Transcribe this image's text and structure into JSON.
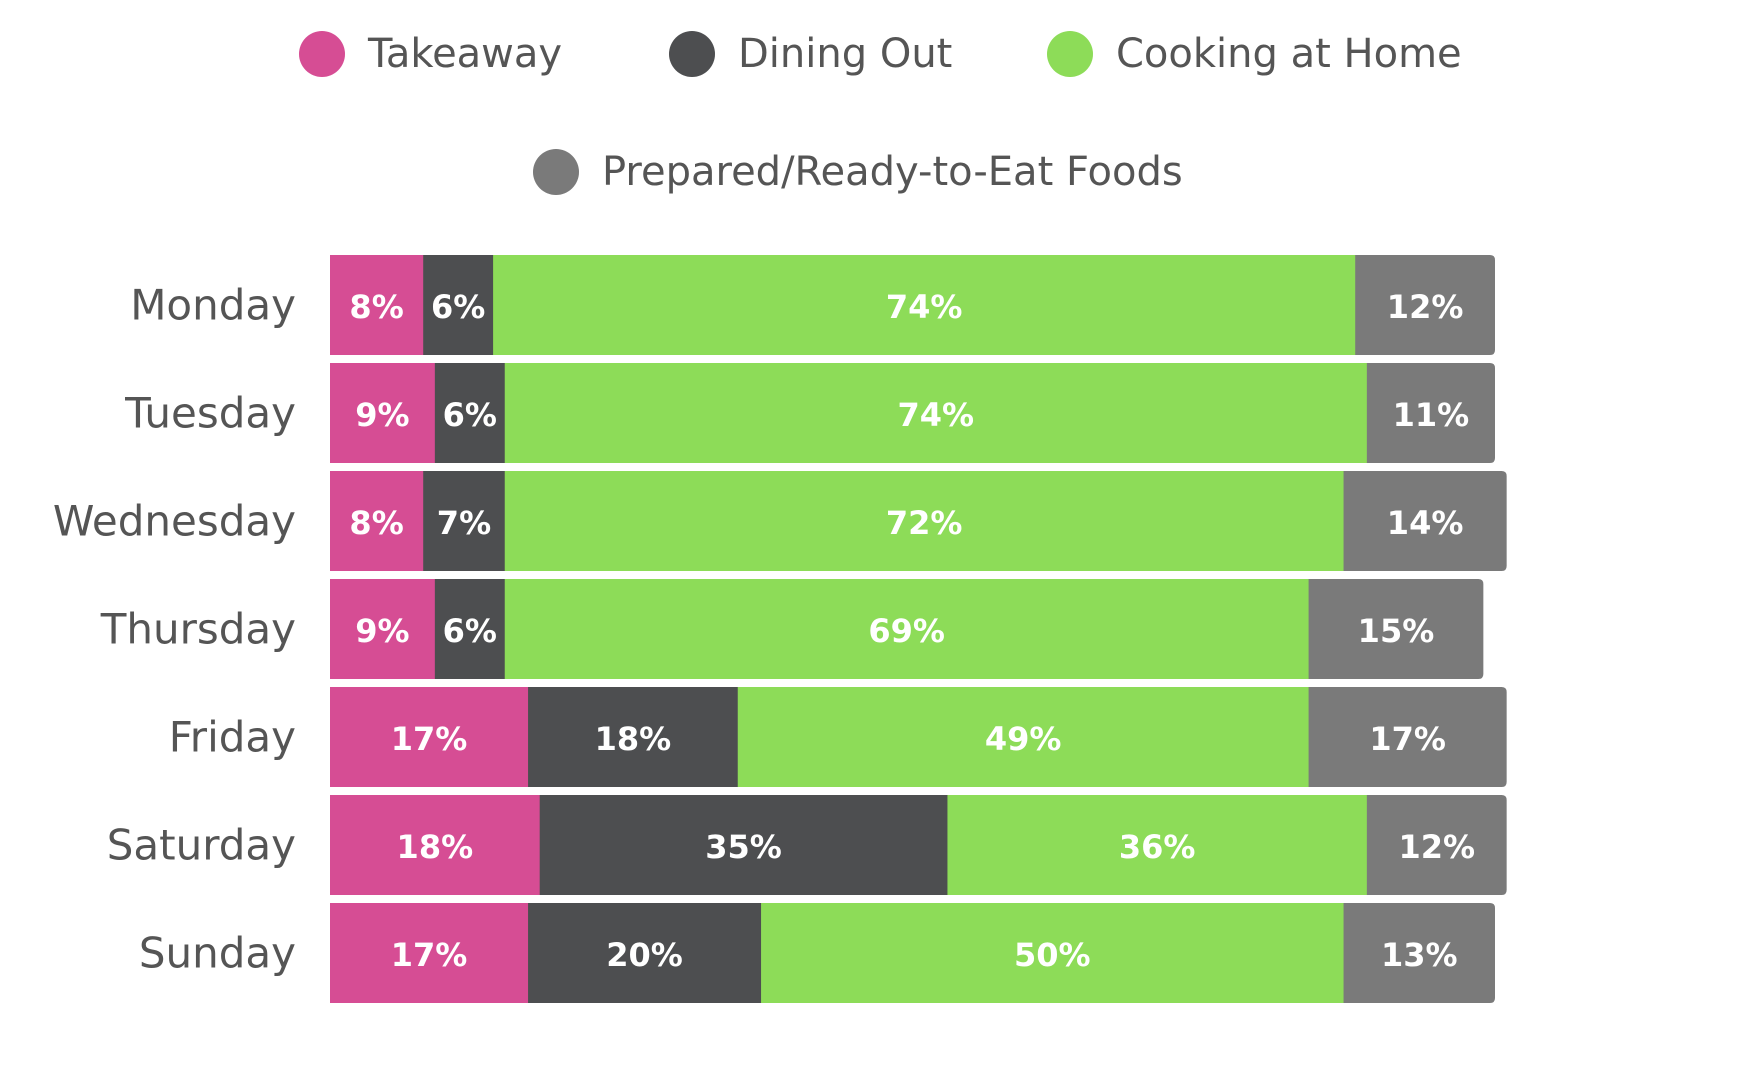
{
  "chart_data": {
    "type": "bar",
    "orientation": "horizontal",
    "stacked": true,
    "categories": [
      "Monday",
      "Tuesday",
      "Wednesday",
      "Thursday",
      "Friday",
      "Saturday",
      "Sunday"
    ],
    "series": [
      {
        "name": "Takeaway",
        "color": "#d64d94",
        "values": [
          8,
          9,
          8,
          9,
          17,
          18,
          17
        ]
      },
      {
        "name": "Dining Out",
        "color": "#4d4e50",
        "values": [
          6,
          6,
          7,
          6,
          18,
          35,
          20
        ]
      },
      {
        "name": "Cooking at Home",
        "color": "#8ddc58",
        "values": [
          74,
          74,
          72,
          69,
          49,
          36,
          50
        ]
      },
      {
        "name": "Prepared/Ready-to-Eat Foods",
        "color": "#7a7a7a",
        "values": [
          12,
          11,
          14,
          15,
          17,
          12,
          13
        ]
      }
    ],
    "value_suffix": "%",
    "legend_position": "top",
    "grid": false,
    "axis_visible": false
  }
}
